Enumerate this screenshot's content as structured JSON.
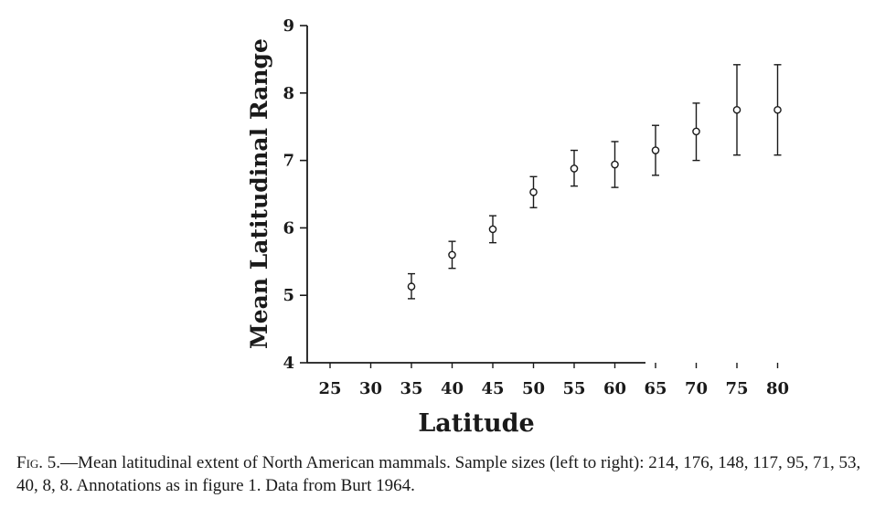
{
  "chart_data": {
    "type": "scatter",
    "xlabel": "Latitude",
    "ylabel": "Mean Latitudinal Range",
    "x_ticks": [
      25,
      30,
      35,
      40,
      45,
      50,
      55,
      60,
      65,
      70,
      75,
      80
    ],
    "y_ticks": [
      4,
      5,
      6,
      7,
      8,
      9
    ],
    "xlim": [
      22.5,
      82.5
    ],
    "ylim": [
      4,
      9
    ],
    "grid": false,
    "series": [
      {
        "x": [
          35,
          40,
          45,
          50,
          55,
          60,
          65,
          70,
          75,
          80
        ],
        "y": [
          5.13,
          5.6,
          5.98,
          6.53,
          6.88,
          6.94,
          7.15,
          7.43,
          7.75,
          7.75
        ],
        "error_low": [
          4.95,
          5.4,
          5.78,
          6.3,
          6.62,
          6.6,
          6.78,
          7.0,
          7.08,
          7.08
        ],
        "error_high": [
          5.32,
          5.8,
          6.18,
          6.76,
          7.15,
          7.28,
          7.52,
          7.85,
          8.42,
          8.42
        ]
      }
    ]
  },
  "caption": {
    "label": "Fig. 5.",
    "text": "—Mean latitudinal extent of North American mammals. Sample sizes (left to right): 214, 176, 148, 117, 95, 71, 53, 40, 8, 8. Annotations as in figure 1. Data from Burt 1964."
  }
}
